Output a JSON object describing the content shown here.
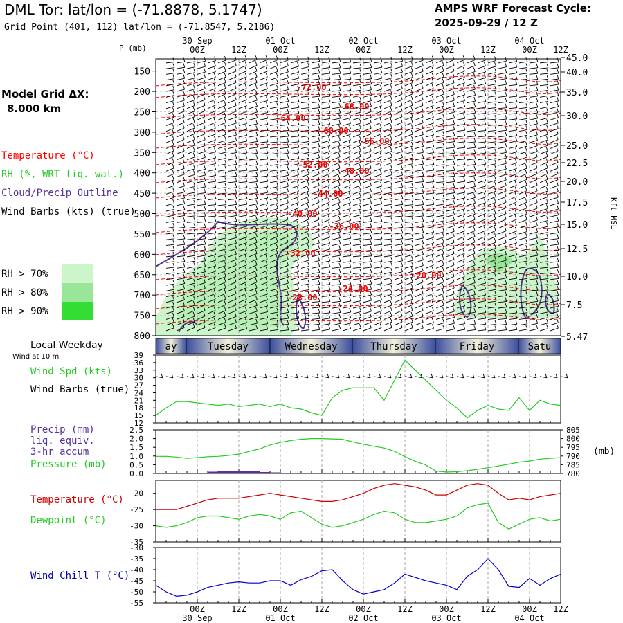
{
  "header": {
    "station_title": "DML Tor:  lat/lon = (-71.8878, 5.1747)",
    "grid_point": "Grid Point (401, 112) lat/lon = (-71.8547, 5.2186)",
    "cycle_line1": "AMPS WRF Forecast Cycle:",
    "cycle_line2": "2025-09-29 / 12  Z"
  },
  "model_grid": {
    "label": "Model Grid ΔX:",
    "value": "8.000 km"
  },
  "legend": {
    "temperature": "Temperature (°C)",
    "rh": "RH (%, WRT liq. wat.)",
    "cloud": "Cloud/Precip Outline",
    "wind": "Wind Barbs (kts) (true)",
    "rh_levels": [
      {
        "label": "RH > 70%",
        "color": "#ccf5cc"
      },
      {
        "label": "RH > 80%",
        "color": "#99e699"
      },
      {
        "label": "RH > 90%",
        "color": "#33dd33"
      }
    ]
  },
  "colors": {
    "temp": "#ff0000",
    "rh": "#22cc22",
    "cloud": "#553399",
    "wind_chill": "#0000cc",
    "dash": "#ff0000"
  },
  "time_axis": {
    "hour_labels": [
      "00Z",
      "12Z",
      "00Z",
      "12Z",
      "00Z",
      "12Z",
      "00Z",
      "12Z",
      "00Z",
      "12Z"
    ],
    "date_labels": [
      "30 Sep",
      "01 Oct",
      "02 Oct",
      "03 Oct",
      "04 Oct"
    ],
    "bottom_hour_labels": [
      "00Z",
      "12Z",
      "00Z",
      "12Z",
      "00Z",
      "12Z",
      "00Z",
      "12Z",
      "00Z",
      "12Z"
    ],
    "bottom_date_labels": [
      "30 Sep",
      "01 Oct",
      "02 Oct",
      "03 Oct",
      "04 Oct"
    ]
  },
  "weekday_bar": {
    "label": "Local Weekday",
    "sublabel": "Wind at 10 m",
    "days": [
      "ay",
      "Tuesday",
      "Wednesday",
      "Thursday",
      "Friday",
      "Satu"
    ]
  },
  "chart_data": [
    {
      "type": "contour-cross-section",
      "title": "Pressure-time cross section",
      "ylabel": "P (mb)",
      "right_ylabel": "Kft MSL",
      "y_ticks": [
        150,
        200,
        250,
        300,
        350,
        400,
        450,
        500,
        550,
        600,
        650,
        700,
        750,
        800
      ],
      "ylim": [
        120,
        800
      ],
      "right_ticks": [
        "45.0",
        "40.0",
        "35.0",
        "30.0",
        "25.0",
        "22.5",
        "20.0",
        "17.5",
        "15.0",
        "12.5",
        "10.0",
        "7.5",
        "5.47"
      ],
      "temperature_contours": [
        "-72.00",
        "-68.00",
        "-64.00",
        "-60.00",
        "-56.00",
        "-52.00",
        "-48.00",
        "-44.00",
        "-40.00",
        "-36.00",
        "-32.00",
        "-28.00",
        "-24.00",
        "-20.00"
      ]
    },
    {
      "type": "line",
      "title": "Wind Spd (kts)",
      "labels": [
        "Wind Spd (kts)",
        "Wind Barbs (true)"
      ],
      "y_ticks": [
        12,
        15,
        18,
        21,
        24,
        27,
        30,
        33,
        36,
        39
      ],
      "ylim": [
        12,
        39
      ],
      "x": [
        0,
        3,
        6,
        9,
        12,
        15,
        18,
        21,
        24,
        27,
        30,
        33,
        36,
        39,
        42,
        45,
        48,
        51,
        54,
        57,
        60,
        63,
        66,
        69,
        72,
        75,
        78,
        81,
        84,
        87,
        90,
        93,
        96,
        99,
        102,
        105,
        108,
        111,
        114,
        117
      ],
      "series": [
        {
          "name": "Wind Spd",
          "values": [
            15,
            18,
            20.5,
            20.5,
            20,
            19.5,
            19,
            19.5,
            18.5,
            19,
            19.5,
            18.5,
            19.5,
            18,
            17.5,
            16,
            15,
            22,
            25,
            26,
            26,
            26,
            21,
            29,
            37,
            33,
            29,
            25,
            21,
            18,
            14,
            17,
            19,
            17.5,
            17,
            22,
            17,
            21,
            19.5,
            19
          ]
        }
      ]
    },
    {
      "type": "bar+line",
      "labels": [
        "Precip (mm)",
        "liq. equiv.",
        "3-hr accum",
        "Pressure (mb)"
      ],
      "right_ylabel": "(mb)",
      "y_ticks": [
        "0.0",
        "0.5",
        "1.0",
        "1.5",
        "2.0",
        "2.5"
      ],
      "ylim": [
        0,
        2.5
      ],
      "right_ticks": [
        "780",
        "785",
        "790",
        "795",
        "800",
        "805"
      ],
      "right_ylim": [
        780,
        805
      ],
      "x": [
        0,
        3,
        6,
        9,
        12,
        15,
        18,
        21,
        24,
        27,
        30,
        33,
        36,
        39,
        42,
        45,
        48,
        51,
        54,
        57,
        60,
        63,
        66,
        69,
        72,
        75,
        78,
        81,
        84,
        87,
        90,
        93,
        96,
        99,
        102,
        105,
        108,
        111,
        114,
        117
      ],
      "precip": [
        0.02,
        0.02,
        0,
        0,
        0,
        0.1,
        0.12,
        0.15,
        0.15,
        0.12,
        0.08,
        0.06,
        0.03,
        0,
        0,
        0,
        0,
        0,
        0,
        0,
        0,
        0,
        0,
        0,
        0,
        0,
        0,
        0,
        0,
        0,
        0,
        0,
        0,
        0,
        0,
        0,
        0,
        0,
        0,
        0
      ],
      "series": [
        {
          "name": "Pressure",
          "values": [
            789.8,
            789.8,
            789.4,
            788.7,
            789.1,
            789.6,
            789.8,
            790.3,
            791.1,
            792.6,
            794.1,
            796.3,
            797.8,
            798.9,
            799.6,
            800.0,
            800.0,
            799.8,
            799.6,
            798.0,
            796.8,
            795.6,
            794.6,
            792.7,
            789.6,
            787.0,
            784.9,
            781.4,
            780.8,
            781.0,
            781.6,
            782.4,
            783.3,
            784.3,
            785.3,
            786.5,
            787.1,
            788.2,
            788.7,
            789.1
          ]
        }
      ]
    },
    {
      "type": "line",
      "labels": [
        "Temperature (°C)",
        "Dewpoint (°C)"
      ],
      "y_ticks": [
        -35,
        -30,
        -25,
        -20
      ],
      "ylim": [
        -35,
        -16
      ],
      "x": [
        0,
        3,
        6,
        9,
        12,
        15,
        18,
        21,
        24,
        27,
        30,
        33,
        36,
        39,
        42,
        45,
        48,
        51,
        54,
        57,
        60,
        63,
        66,
        69,
        72,
        75,
        78,
        81,
        84,
        87,
        90,
        93,
        96,
        99,
        102,
        105,
        108,
        111,
        114,
        117
      ],
      "series": [
        {
          "name": "Temperature",
          "values": [
            -25,
            -25,
            -25,
            -24,
            -23,
            -22,
            -21.5,
            -21.5,
            -21.5,
            -21,
            -20.5,
            -20,
            -20.5,
            -21,
            -21.5,
            -22,
            -22.5,
            -22.5,
            -22,
            -21,
            -20,
            -18.5,
            -17.5,
            -17,
            -17.5,
            -18,
            -19,
            -20.5,
            -20.5,
            -19,
            -17.5,
            -17,
            -17.5,
            -20,
            -22,
            -21.5,
            -22,
            -21,
            -20.5,
            -20
          ]
        },
        {
          "name": "Dewpoint",
          "values": [
            -30,
            -30.5,
            -30,
            -29,
            -27.5,
            -27,
            -27,
            -27.5,
            -28,
            -27,
            -26.5,
            -27,
            -28,
            -26,
            -25.5,
            -27.5,
            -29.5,
            -30.5,
            -30,
            -29,
            -28,
            -26.5,
            -25.5,
            -26,
            -28,
            -29,
            -29,
            -28.5,
            -28,
            -27,
            -24.5,
            -23.5,
            -23,
            -29,
            -31,
            -29.5,
            -28,
            -27.5,
            -28.5,
            -28
          ]
        }
      ]
    },
    {
      "type": "line",
      "labels": [
        "Wind Chill T (°C)"
      ],
      "y_ticks": [
        -55,
        -50,
        -45,
        -40,
        -35,
        -30
      ],
      "ylim": [
        -55,
        -30
      ],
      "x": [
        0,
        3,
        6,
        9,
        12,
        15,
        18,
        21,
        24,
        27,
        30,
        33,
        36,
        39,
        42,
        45,
        48,
        51,
        54,
        57,
        60,
        63,
        66,
        69,
        72,
        75,
        78,
        81,
        84,
        87,
        90,
        93,
        96,
        99,
        102,
        105,
        108,
        111,
        114,
        117
      ],
      "series": [
        {
          "name": "Wind Chill",
          "values": [
            -47,
            -50,
            -52,
            -51.5,
            -50,
            -48,
            -47,
            -46,
            -45.5,
            -46,
            -46,
            -45,
            -45,
            -47,
            -44.5,
            -43,
            -40.5,
            -40,
            -45,
            -49,
            -51,
            -50,
            -49,
            -46,
            -42,
            -43.5,
            -45,
            -46,
            -47,
            -49,
            -43,
            -40,
            -35,
            -40,
            -47.5,
            -48,
            -44,
            -47,
            -44,
            -42
          ]
        }
      ]
    }
  ]
}
